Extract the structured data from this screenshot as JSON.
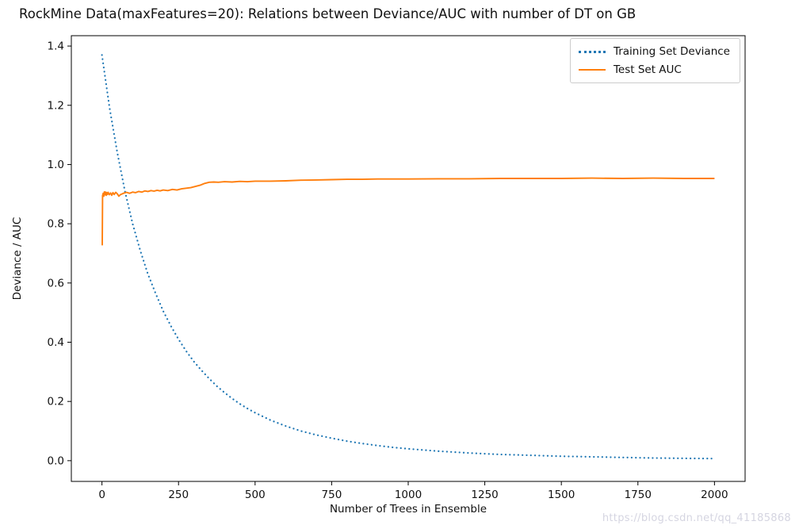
{
  "watermark": {
    "text": "https://blog.csdn.net/qq_41185868",
    "color": "#d5d5e1"
  },
  "chart_data": {
    "type": "line",
    "title": "RockMine Data(maxFeatures=20): Relations between Deviance/AUC with number of DT on GB",
    "xlabel": "Number of Trees in Ensemble",
    "ylabel": "Deviance / AUC",
    "xlim": [
      -100,
      2100
    ],
    "ylim": [
      -0.07,
      1.435
    ],
    "xticks": [
      0,
      250,
      500,
      750,
      1000,
      1250,
      1500,
      1750,
      2000
    ],
    "xtick_labels": [
      "0",
      "250",
      "500",
      "750",
      "1000",
      "1250",
      "1500",
      "1750",
      "2000"
    ],
    "yticks": [
      0.0,
      0.2,
      0.4,
      0.6,
      0.8,
      1.0,
      1.2,
      1.4
    ],
    "ytick_labels": [
      "0.0",
      "0.2",
      "0.4",
      "0.6",
      "0.8",
      "1.0",
      "1.2",
      "1.4"
    ],
    "grid": false,
    "legend_position": "upper right",
    "series": [
      {
        "name": "Training Set Deviance",
        "color": "#1f77b4",
        "style": "dotted",
        "x": [
          0,
          25,
          50,
          75,
          100,
          125,
          150,
          175,
          200,
          225,
          250,
          275,
          300,
          325,
          350,
          375,
          400,
          425,
          450,
          475,
          500,
          550,
          600,
          650,
          700,
          750,
          800,
          850,
          900,
          950,
          1000,
          1100,
          1200,
          1300,
          1400,
          1500,
          1600,
          1700,
          1800,
          1900,
          2000
        ],
        "values": [
          1.37,
          1.19,
          1.04,
          0.91,
          0.8,
          0.71,
          0.63,
          0.565,
          0.505,
          0.455,
          0.41,
          0.37,
          0.335,
          0.305,
          0.277,
          0.252,
          0.23,
          0.21,
          0.192,
          0.176,
          0.162,
          0.137,
          0.117,
          0.1,
          0.087,
          0.076,
          0.066,
          0.058,
          0.051,
          0.045,
          0.04,
          0.032,
          0.026,
          0.021,
          0.018,
          0.015,
          0.013,
          0.011,
          0.009,
          0.008,
          0.007
        ]
      },
      {
        "name": "Test Set AUC",
        "color": "#ff7f0e",
        "style": "solid",
        "x": [
          1,
          2,
          4,
          6,
          8,
          10,
          12,
          14,
          16,
          18,
          20,
          24,
          28,
          32,
          36,
          40,
          45,
          50,
          55,
          60,
          70,
          80,
          90,
          100,
          110,
          120,
          130,
          140,
          150,
          160,
          170,
          180,
          190,
          200,
          215,
          230,
          245,
          260,
          275,
          290,
          305,
          320,
          335,
          350,
          365,
          380,
          400,
          425,
          450,
          475,
          500,
          550,
          600,
          650,
          700,
          750,
          800,
          850,
          900,
          950,
          1000,
          1100,
          1200,
          1300,
          1400,
          1500,
          1600,
          1700,
          1800,
          1900,
          2000
        ],
        "values": [
          0.727,
          0.895,
          0.903,
          0.893,
          0.908,
          0.898,
          0.907,
          0.896,
          0.905,
          0.899,
          0.906,
          0.898,
          0.904,
          0.896,
          0.905,
          0.899,
          0.906,
          0.901,
          0.893,
          0.898,
          0.903,
          0.906,
          0.903,
          0.907,
          0.905,
          0.909,
          0.907,
          0.911,
          0.909,
          0.912,
          0.91,
          0.913,
          0.911,
          0.914,
          0.912,
          0.916,
          0.914,
          0.918,
          0.92,
          0.922,
          0.926,
          0.93,
          0.936,
          0.94,
          0.941,
          0.94,
          0.942,
          0.941,
          0.943,
          0.942,
          0.944,
          0.944,
          0.945,
          0.947,
          0.948,
          0.949,
          0.95,
          0.95,
          0.951,
          0.951,
          0.951,
          0.952,
          0.952,
          0.953,
          0.953,
          0.953,
          0.954,
          0.953,
          0.954,
          0.953,
          0.953
        ]
      }
    ]
  }
}
